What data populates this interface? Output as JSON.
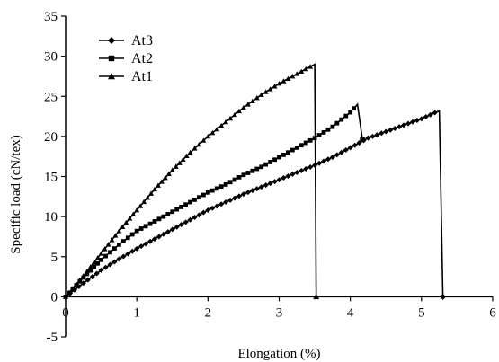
{
  "chart_data": {
    "type": "line",
    "title": "",
    "xlabel": "Elongation (%)",
    "ylabel": "Specific load (cN/tex)",
    "xlim": [
      0,
      6
    ],
    "ylim": [
      -5,
      35
    ],
    "xticks": [
      0,
      1,
      2,
      3,
      4,
      5,
      6
    ],
    "yticks": [
      -5,
      0,
      5,
      10,
      15,
      20,
      25,
      30,
      35
    ],
    "grid": false,
    "legend_position": "top-left",
    "series": [
      {
        "name": "At3",
        "marker": "diamond",
        "x": [
          0,
          0.25,
          0.5,
          0.75,
          1.0,
          1.25,
          1.5,
          1.75,
          2.0,
          2.25,
          2.5,
          2.75,
          3.0,
          3.25,
          3.5,
          3.75,
          4.0,
          4.25,
          4.5,
          4.75,
          5.0,
          5.25,
          5.3
        ],
        "y": [
          0,
          1.7,
          3.3,
          4.7,
          6.0,
          7.2,
          8.4,
          9.6,
          10.8,
          11.8,
          12.8,
          13.7,
          14.6,
          15.5,
          16.4,
          17.4,
          18.6,
          19.8,
          20.6,
          21.4,
          22.2,
          23.2,
          0
        ]
      },
      {
        "name": "At2",
        "marker": "square",
        "x": [
          0,
          0.25,
          0.5,
          0.75,
          1.0,
          1.25,
          1.5,
          1.75,
          2.0,
          2.25,
          2.5,
          2.75,
          3.0,
          3.25,
          3.5,
          3.75,
          4.0,
          4.1,
          4.17
        ],
        "y": [
          0,
          2.4,
          4.6,
          6.5,
          8.2,
          9.4,
          10.6,
          11.8,
          13.0,
          14.0,
          15.2,
          16.2,
          17.4,
          18.6,
          19.8,
          21.2,
          23.0,
          24.0,
          19.6
        ]
      },
      {
        "name": "At1",
        "marker": "triangle",
        "x": [
          0,
          0.25,
          0.5,
          0.75,
          1.0,
          1.25,
          1.5,
          1.75,
          2.0,
          2.25,
          2.5,
          2.75,
          3.0,
          3.25,
          3.5,
          3.52
        ],
        "y": [
          0,
          2.6,
          5.4,
          8.2,
          10.8,
          13.4,
          15.8,
          18.0,
          20.0,
          21.8,
          23.6,
          25.2,
          26.6,
          27.8,
          29.0,
          0
        ]
      }
    ]
  }
}
